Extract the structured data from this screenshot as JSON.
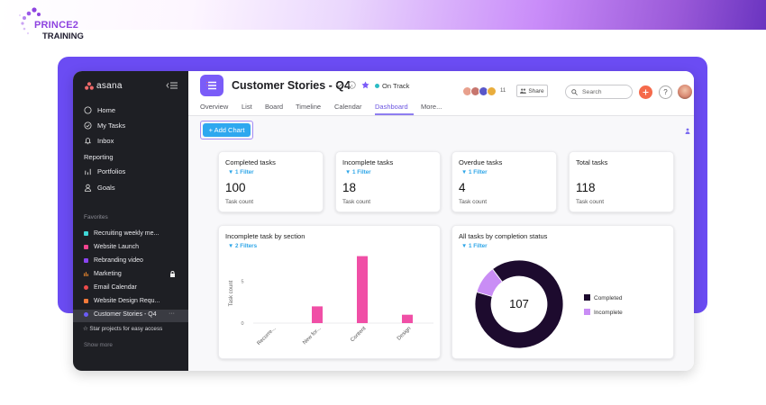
{
  "brand": {
    "line1": "PRINCE2",
    "line2": "TRAINING"
  },
  "sidebar": {
    "logo": "asana",
    "nav": [
      {
        "label": "Home",
        "icon": "home-icon"
      },
      {
        "label": "My Tasks",
        "icon": "check-circle-icon"
      },
      {
        "label": "Inbox",
        "icon": "bell-icon"
      }
    ],
    "reporting_label": "Reporting",
    "reporting": [
      {
        "label": "Portfolios",
        "icon": "bar-chart-icon"
      },
      {
        "label": "Goals",
        "icon": "person-icon"
      }
    ],
    "favorites_label": "Favorites",
    "favorites": [
      {
        "label": "Recruiting weekly me...",
        "color": "#3fd6d6"
      },
      {
        "label": "Website Launch",
        "color": "#f2448f"
      },
      {
        "label": "Rebranding video",
        "color": "#8a44f0"
      },
      {
        "label": "Marketing",
        "color": "#f28a2e"
      },
      {
        "label": "Email Calendar",
        "color": "#ec4b4b"
      },
      {
        "label": "Website Design Requ...",
        "color": "#f47a3a"
      },
      {
        "label": "Customer Stories - Q4",
        "color": "#6b5cf6"
      }
    ],
    "more_dots": "···",
    "star_projects": "☆ Star projects for easy access",
    "show_more": "Show more"
  },
  "header": {
    "title": "Customer Stories - Q4",
    "status": "On Track",
    "status_color": "#2bbcc4",
    "member_count": "11",
    "share_label": "Share",
    "search_placeholder": "Search"
  },
  "tabs": [
    "Overview",
    "List",
    "Board",
    "Timeline",
    "Calendar",
    "Dashboard",
    "More..."
  ],
  "active_tab": "Dashboard",
  "toolbar": {
    "add_chart": "+ Add Chart"
  },
  "stats": [
    {
      "title": "Completed tasks",
      "filter": "1 Filter",
      "value": "100",
      "sub": "Task count"
    },
    {
      "title": "Incomplete tasks",
      "filter": "1 Filter",
      "value": "18",
      "sub": "Task count"
    },
    {
      "title": "Overdue tasks",
      "filter": "1 Filter",
      "value": "4",
      "sub": "Task count"
    },
    {
      "title": "Total tasks",
      "filter": "",
      "value": "118",
      "sub": "Task count"
    }
  ],
  "chart_data": [
    {
      "type": "bar",
      "title": "Incomplete task by section",
      "filter": "2 Filters",
      "categories": [
        "Recurre...",
        "New for...",
        "Content",
        "Design"
      ],
      "values": [
        0,
        2,
        8,
        1
      ],
      "ylabel": "Task count",
      "yticks": [
        0,
        5
      ],
      "ylim": [
        0,
        8
      ],
      "color": "#f04fa6",
      "grid": false
    },
    {
      "type": "pie",
      "title": "All tasks by completion status",
      "filter": "1 Filter",
      "center_label": "107",
      "labels": [
        "Completed",
        "Incomplete"
      ],
      "values": [
        96,
        11
      ],
      "colors": [
        "#1d0b2e",
        "#c98df5"
      ],
      "legend": "right"
    }
  ]
}
